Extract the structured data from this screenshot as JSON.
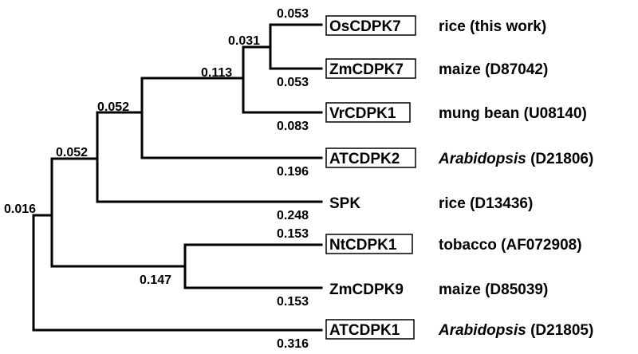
{
  "tree": {
    "internal": {
      "root": "0.016",
      "n1": "0.052",
      "n2": "0.052",
      "n3": "0.113",
      "n4": "0.031",
      "n5": "0.147"
    },
    "leaves": [
      {
        "gene": "OsCDPK7",
        "boxed": true,
        "length": "0.053",
        "species": "rice",
        "species_italic": false,
        "accession": "(this work)"
      },
      {
        "gene": "ZmCDPK7",
        "boxed": true,
        "length": "0.053",
        "species": "maize",
        "species_italic": false,
        "accession": "(D87042)"
      },
      {
        "gene": "VrCDPK1",
        "boxed": true,
        "length": "0.083",
        "species": "mung bean",
        "species_italic": false,
        "accession": "(U08140)"
      },
      {
        "gene": "ATCDPK2",
        "boxed": true,
        "length": "0.196",
        "species": "Arabidopsis",
        "species_italic": true,
        "accession": "(D21806)"
      },
      {
        "gene": "SPK",
        "boxed": false,
        "length": "0.248",
        "species": "rice",
        "species_italic": false,
        "accession": "(D13436)"
      },
      {
        "gene": "NtCDPK1",
        "boxed": true,
        "length": "0.153",
        "species": "tobacco",
        "species_italic": false,
        "accession": "(AF072908)"
      },
      {
        "gene": "ZmCDPK9",
        "boxed": false,
        "length": "0.153",
        "species": "maize",
        "species_italic": false,
        "accession": "(D85039)"
      },
      {
        "gene": "ATCDPK1",
        "boxed": true,
        "length": "0.316",
        "species": "Arabidopsis",
        "species_italic": true,
        "accession": "(D21805)"
      }
    ]
  }
}
